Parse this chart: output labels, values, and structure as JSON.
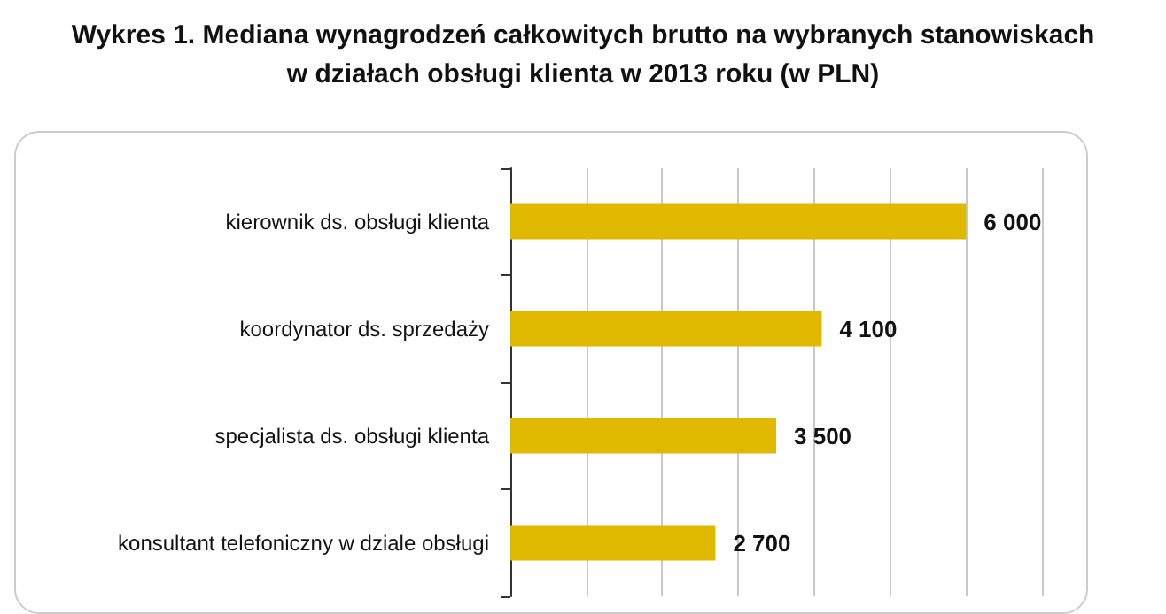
{
  "chart_data": {
    "type": "bar",
    "orientation": "horizontal",
    "title": "Wykres 1. Mediana wynagrodzeń całkowitych brutto na wybranych stanowiskach\nw działach obsługi klienta w 2013 roku (w PLN)",
    "categories": [
      "kierownik ds. obsługi klienta",
      "koordynator ds. sprzedaży",
      "specjalista ds. obsługi klienta",
      "konsultant telefoniczny w dziale obsługi"
    ],
    "values": [
      6000,
      4100,
      3500,
      2700
    ],
    "value_labels": [
      "6 000",
      "4 100",
      "3 500",
      "2 700"
    ],
    "color": "#e0b800",
    "xlim": [
      0,
      7000
    ],
    "xticks": [
      {
        "value": 0,
        "label": null
      },
      {
        "value": 1000,
        "label": null
      },
      {
        "value": 2000,
        "label": null
      },
      {
        "value": 3000,
        "label": null
      },
      {
        "value": 4000,
        "label": null
      },
      {
        "value": 5000,
        "label": null
      },
      {
        "value": 6000,
        "label": null
      },
      {
        "value": 7000,
        "label": null
      }
    ],
    "tick_labels": "y",
    "grid": "x"
  }
}
